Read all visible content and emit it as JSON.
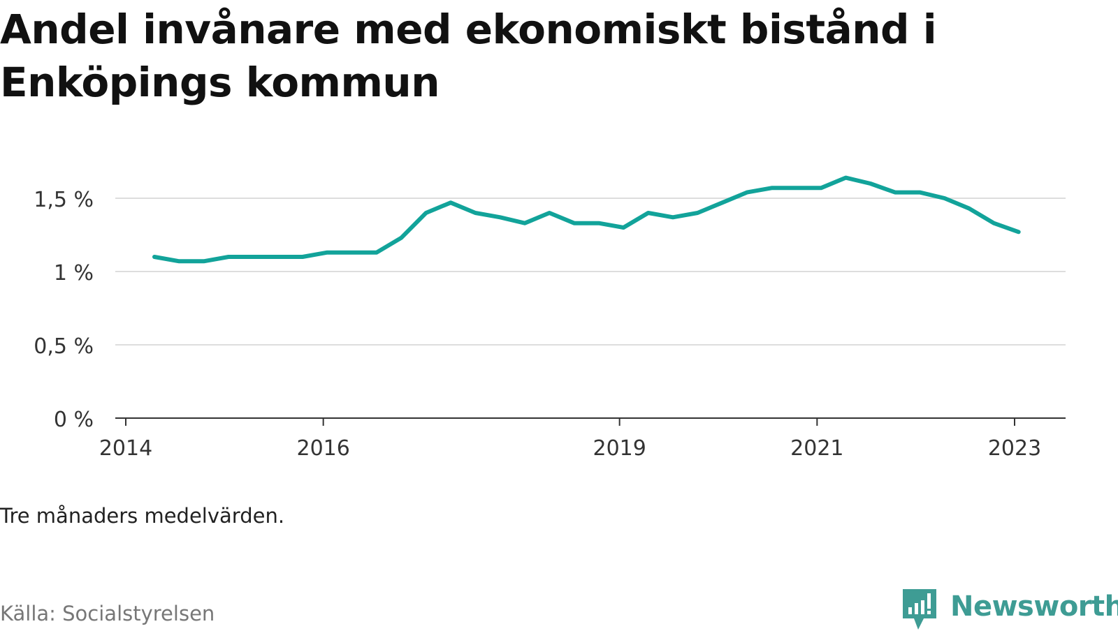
{
  "title": "Andel invånare med ekonomiskt bistånd i Enköpings kommun",
  "note": "Tre månaders medelvärden.",
  "source": "Källa: Socialstyrelsen",
  "brand": "Newsworthy",
  "colors": {
    "line": "#12a39a",
    "grid": "#dddddd",
    "axis": "#333333",
    "brand": "#3e9c94"
  },
  "chart_data": {
    "type": "line",
    "title": "Andel invånare med ekonomiskt bistånd i Enköpings kommun",
    "xlabel": "",
    "ylabel": "",
    "ylim": [
      0,
      1.5
    ],
    "yticks": [
      0,
      0.5,
      1,
      1.5
    ],
    "ytick_labels": [
      "0 %",
      "0,5 %",
      "1 %",
      "1,5 %"
    ],
    "xticks": [
      2014,
      2016,
      2019,
      2021,
      2023
    ],
    "xtick_labels": [
      "2014",
      "2016",
      "2019",
      "2021",
      "2023"
    ],
    "grid": true,
    "series": [
      {
        "x": [
          2014.29,
          2014.54,
          2014.79,
          2015.04,
          2015.29,
          2015.54,
          2015.79,
          2016.04,
          2016.29,
          2016.54,
          2016.79,
          2017.04,
          2017.29,
          2017.54,
          2017.79,
          2018.04,
          2018.29,
          2018.54,
          2018.79,
          2019.04,
          2019.29,
          2019.54,
          2019.79,
          2020.04,
          2020.29,
          2020.54,
          2020.79,
          2021.04,
          2021.29,
          2021.54,
          2021.79,
          2022.04,
          2022.29,
          2022.54,
          2022.79,
          2023.04
        ],
        "values": [
          1.1,
          1.07,
          1.07,
          1.1,
          1.1,
          1.1,
          1.1,
          1.13,
          1.13,
          1.13,
          1.23,
          1.4,
          1.47,
          1.4,
          1.37,
          1.33,
          1.4,
          1.33,
          1.33,
          1.3,
          1.4,
          1.37,
          1.4,
          1.47,
          1.54,
          1.57,
          1.57,
          1.57,
          1.64,
          1.6,
          1.54,
          1.54,
          1.5,
          1.43,
          1.33,
          1.27
        ]
      }
    ]
  }
}
